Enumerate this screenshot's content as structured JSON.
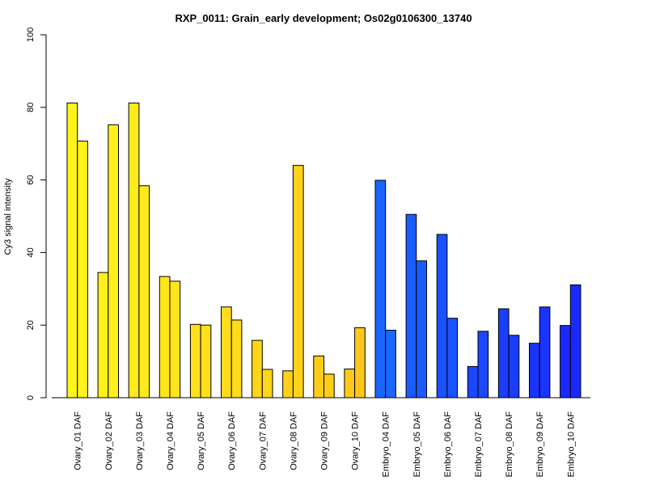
{
  "chart_data": {
    "type": "bar",
    "title": "RXP_0011: Grain_early development; Os02g0106300_13740",
    "xlabel": "",
    "ylabel": "Cy3 signal intensity",
    "ylim": [
      0,
      100
    ],
    "yticks": [
      0,
      20,
      40,
      60,
      80,
      100
    ],
    "categories": [
      "Ovary_01 DAF",
      "Ovary_02 DAF",
      "Ovary_03 DAF",
      "Ovary_04 DAF",
      "Ovary_05 DAF",
      "Ovary_06 DAF",
      "Ovary_07 DAF",
      "Ovary_08 DAF",
      "Ovary_09 DAF",
      "Ovary_10 DAF",
      "Embryo_04 DAF",
      "Embryo_05 DAF",
      "Embryo_06 DAF",
      "Embryo_07 DAF",
      "Embryo_08 DAF",
      "Embryo_09 DAF",
      "Embryo_10 DAF"
    ],
    "category_colors": [
      "#FFF51A",
      "#FFF01A",
      "#FFEB1A",
      "#FFE61A",
      "#FFE01A",
      "#FFDB1A",
      "#FFD61A",
      "#FFD11A",
      "#FFCC1A",
      "#FFC71A",
      "#1A66FF",
      "#1A5CFF",
      "#1A52FF",
      "#1A47FF",
      "#1A3DFF",
      "#1A33FF",
      "#1A29FF"
    ],
    "series": [
      {
        "values": [
          81.2,
          34.5,
          81.2,
          33.4,
          20.2,
          25.0,
          15.8,
          7.4,
          11.5,
          7.9,
          59.9,
          50.5,
          45.0,
          8.6,
          24.5,
          15.0,
          19.9
        ]
      },
      {
        "values": [
          70.7,
          75.2,
          58.4,
          32.1,
          20.0,
          21.4,
          7.8,
          64.0,
          6.5,
          19.3,
          18.6,
          37.7,
          21.9,
          18.3,
          17.2,
          25.0,
          31.1
        ]
      }
    ],
    "grid": false,
    "legend": "none"
  }
}
